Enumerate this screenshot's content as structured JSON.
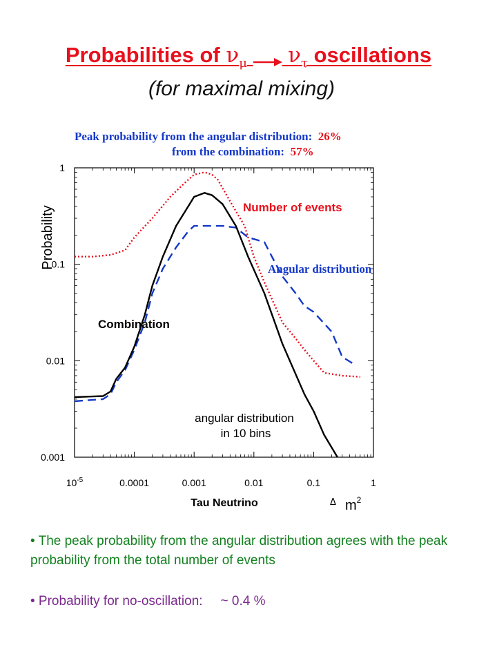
{
  "title": {
    "prefix": "Probabilities of ",
    "nu": "ν",
    "mu": "μ",
    "tau": "τ",
    "suffix": " oscillations",
    "subtitle": "(for maximal mixing)",
    "color": "#e8101c"
  },
  "annotations": {
    "peak_line1": "Peak probability from the angular distribution:",
    "peak_value1": "26%",
    "peak_line2": "from the combination:",
    "peak_value2": "57%"
  },
  "chart_data": {
    "type": "line",
    "xlabel": "Tau Neutrino",
    "xlabel_suffix": "Δ m²",
    "ylabel": "Probability",
    "x_scale": "log",
    "y_scale": "log",
    "xlim": [
      1e-05,
      1
    ],
    "ylim": [
      0.001,
      1
    ],
    "x_ticks": [
      "10-5",
      "0.0001",
      "0.001",
      "0.01",
      "0.1",
      "1"
    ],
    "y_ticks": [
      "1",
      "0.1",
      "0.01",
      "0.001"
    ],
    "grid": false,
    "series": [
      {
        "name": "Number of events",
        "color": "#e8101c",
        "style": "dotted",
        "x": [
          1e-05,
          2e-05,
          4e-05,
          7e-05,
          0.0001,
          0.0002,
          0.0004,
          0.0007,
          0.001,
          0.0015,
          0.002,
          0.0025,
          0.004,
          0.007,
          0.01,
          0.015,
          0.03,
          0.05,
          0.07,
          0.1,
          0.15,
          0.3,
          0.6
        ],
        "y": [
          0.12,
          0.12,
          0.125,
          0.14,
          0.19,
          0.3,
          0.5,
          0.7,
          0.85,
          0.9,
          0.85,
          0.75,
          0.45,
          0.25,
          0.12,
          0.065,
          0.025,
          0.017,
          0.013,
          0.01,
          0.0075,
          0.007,
          0.0068
        ]
      },
      {
        "name": "Angular distribution",
        "color": "#1438c8",
        "style": "dashed",
        "x": [
          1e-05,
          3e-05,
          4e-05,
          5e-05,
          7e-05,
          0.0001,
          0.00015,
          0.0002,
          0.0003,
          0.0005,
          0.0008,
          0.001,
          0.0015,
          0.002,
          0.003,
          0.005,
          0.008,
          0.015,
          0.02,
          0.03,
          0.05,
          0.07,
          0.1,
          0.2,
          0.3,
          0.5
        ],
        "y": [
          0.0038,
          0.004,
          0.0045,
          0.006,
          0.008,
          0.013,
          0.025,
          0.05,
          0.09,
          0.15,
          0.22,
          0.25,
          0.25,
          0.25,
          0.25,
          0.24,
          0.19,
          0.17,
          0.12,
          0.075,
          0.05,
          0.037,
          0.032,
          0.02,
          0.011,
          0.009
        ]
      },
      {
        "name": "Combination",
        "color": "#000000",
        "style": "solid",
        "x": [
          1e-05,
          3e-05,
          4e-05,
          5e-05,
          7e-05,
          0.0001,
          0.00015,
          0.0002,
          0.0003,
          0.0005,
          0.0008,
          0.001,
          0.0015,
          0.002,
          0.003,
          0.005,
          0.008,
          0.015,
          0.03,
          0.07,
          0.1,
          0.15,
          0.25
        ],
        "y": [
          0.0042,
          0.0043,
          0.0048,
          0.0065,
          0.0085,
          0.014,
          0.03,
          0.06,
          0.12,
          0.25,
          0.4,
          0.5,
          0.55,
          0.52,
          0.42,
          0.25,
          0.12,
          0.05,
          0.015,
          0.0045,
          0.003,
          0.0017,
          0.001
        ]
      }
    ],
    "labels": {
      "number_of_events": "Number of events",
      "angular_distribution": "Angular distribution",
      "combination": "Combination",
      "bins_line1": "angular distribution",
      "bins_line2": "in 10 bins"
    }
  },
  "bullets": [
    {
      "text": "• The peak probability from the angular distribution agrees with the peak probability from the total number of events",
      "color": "#12801e"
    },
    {
      "text": "• Probability for no-oscillation:",
      "value": "~ 0.4 %",
      "color": "#7a2a8c"
    }
  ]
}
